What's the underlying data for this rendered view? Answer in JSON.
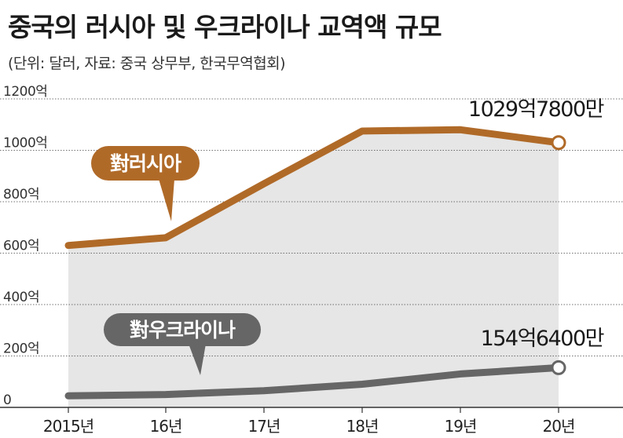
{
  "header": {
    "title": "중국의 러시아 및 우크라이나 교역액 규모",
    "subtitle": "(단위: 달러, 자료: 중국 상무부, 한국무역협회)"
  },
  "chart_data": {
    "type": "line",
    "categories": [
      "2015년",
      "16년",
      "17년",
      "18년",
      "19년",
      "20년"
    ],
    "y_ticks": [
      {
        "value": 0,
        "label": "0"
      },
      {
        "value": 200,
        "label": "200억"
      },
      {
        "value": 400,
        "label": "400억"
      },
      {
        "value": 600,
        "label": "600억"
      },
      {
        "value": 800,
        "label": "800억"
      },
      {
        "value": 1000,
        "label": "1000억"
      },
      {
        "value": 1200,
        "label": "1200억"
      }
    ],
    "ylim": [
      0,
      1200
    ],
    "series": [
      {
        "name": "對러시아",
        "color": "#b06a28",
        "values": [
          630,
          660,
          870,
          1075,
          1080,
          1029.78
        ],
        "end_label": "1029억7800만"
      },
      {
        "name": "對우크라이나",
        "color": "#666666",
        "values": [
          45,
          50,
          65,
          90,
          130,
          154.64
        ],
        "end_label": "154억6400만"
      }
    ],
    "colors": {
      "area": "#e6e6e6",
      "grid": "#444444",
      "axis": "#333333"
    },
    "grid": true
  }
}
